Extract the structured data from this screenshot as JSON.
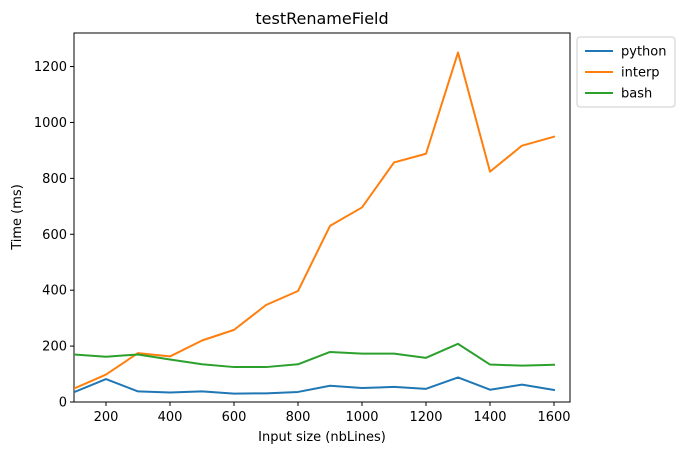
{
  "chart_data": {
    "type": "line",
    "title": "testRenameField",
    "xlabel": "Input size (nbLines)",
    "ylabel": "Time (ms)",
    "xlim": [
      100,
      1650
    ],
    "ylim": [
      0,
      1320
    ],
    "xticks": [
      200,
      400,
      600,
      800,
      1000,
      1200,
      1400,
      1600
    ],
    "yticks": [
      0,
      200,
      400,
      600,
      800,
      1000,
      1200
    ],
    "legend_position": "outside-top-right",
    "grid": false,
    "x": [
      100,
      200,
      300,
      400,
      500,
      600,
      700,
      800,
      900,
      1000,
      1100,
      1200,
      1300,
      1400,
      1500,
      1600
    ],
    "series": [
      {
        "name": "python",
        "color": "#1f77b4",
        "values": [
          35,
          82,
          38,
          34,
          38,
          30,
          31,
          36,
          58,
          50,
          54,
          47,
          88,
          44,
          62,
          43
        ]
      },
      {
        "name": "interp",
        "color": "#ff7f0e",
        "values": [
          48,
          98,
          175,
          163,
          220,
          258,
          347,
          397,
          630,
          696,
          857,
          888,
          1250,
          824,
          917,
          949
        ]
      },
      {
        "name": "bash",
        "color": "#2ca02c",
        "values": [
          170,
          162,
          170,
          152,
          135,
          125,
          125,
          135,
          179,
          173,
          173,
          158,
          208,
          134,
          130,
          133
        ]
      }
    ]
  }
}
